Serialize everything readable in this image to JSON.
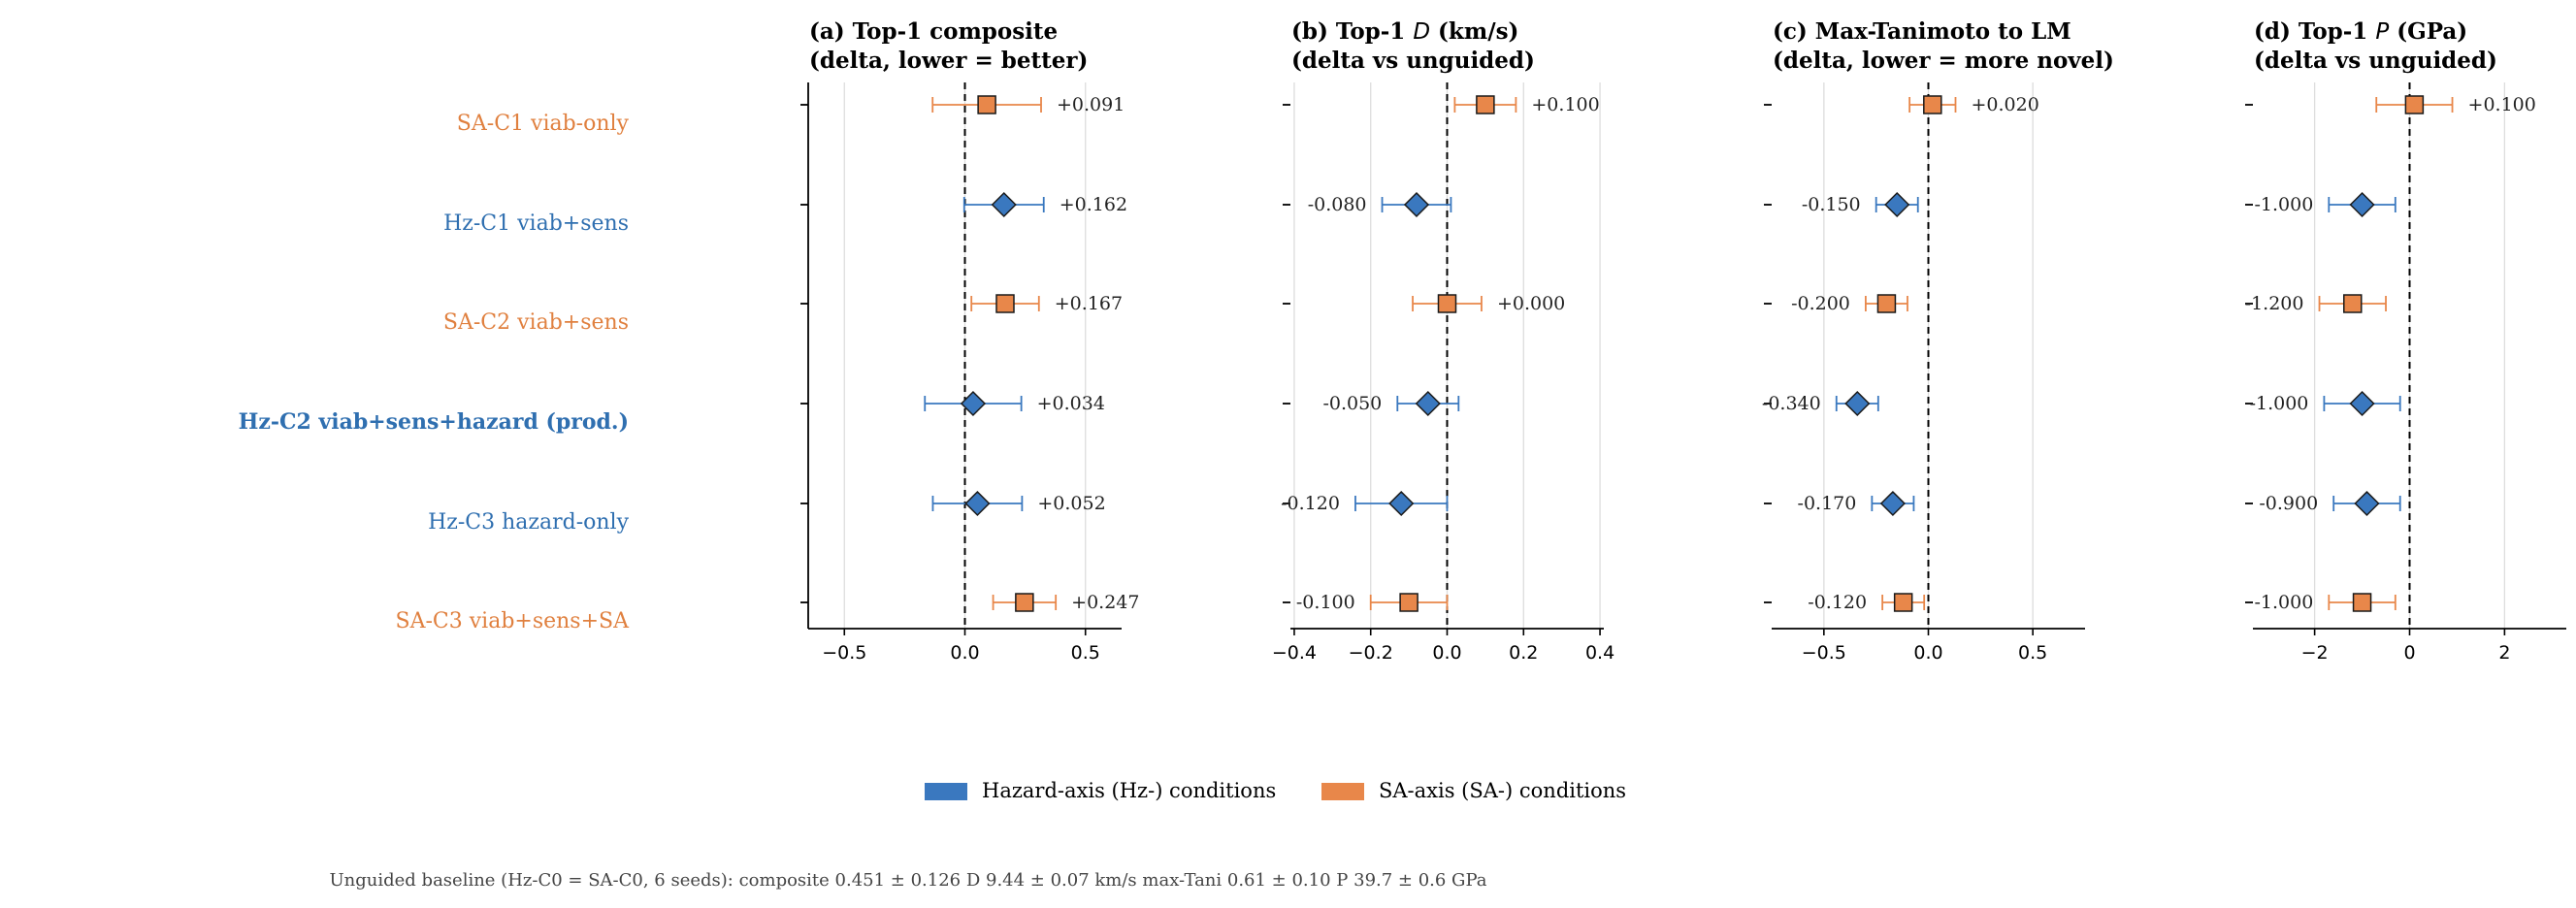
{
  "conditions": [
    {
      "label": "SA-C1  viab-only",
      "axis": "SA",
      "bold": false
    },
    {
      "label": "Hz-C1  viab+sens",
      "axis": "Hz",
      "bold": false
    },
    {
      "label": "SA-C2  viab+sens",
      "axis": "SA",
      "bold": false
    },
    {
      "label": "Hz-C2  viab+sens+hazard  (prod.)",
      "axis": "Hz",
      "bold": true
    },
    {
      "label": "Hz-C3  hazard-only",
      "axis": "Hz",
      "bold": false
    },
    {
      "label": "SA-C3  viab+sens+SA",
      "axis": "SA",
      "bold": false
    }
  ],
  "colors": {
    "Hz": "#3a78bf",
    "SA": "#e8874a",
    "Hz_text": "#2f6fb0",
    "SA_text": "#e0803f",
    "grid": "#dddddd",
    "axis": "#000000",
    "footer": "#444444"
  },
  "markers": {
    "Hz": "diamond",
    "SA": "square"
  },
  "legend": {
    "items": [
      {
        "label": "Hazard-axis (Hz-) conditions",
        "axis": "Hz"
      },
      {
        "label": "SA-axis (SA-) conditions",
        "axis": "SA"
      }
    ],
    "placement": "bottom-center"
  },
  "footer": {
    "text": "Unguided baseline (Hz-C0 = SA-C0, 6 seeds): composite 0.451 ± 0.126   D 9.44 ± 0.07 km/s   max-Tani 0.61 ± 0.10   P 39.7 ± 0.6 GPa"
  },
  "chart_data": [
    {
      "type": "scatter",
      "title": [
        "(a) Top-1 composite",
        "(delta, lower = better)"
      ],
      "xlim": [
        -0.65,
        0.65
      ],
      "xticks": [
        -0.5,
        0.0,
        0.5
      ],
      "xtick_labels": [
        "−0.5",
        "0.0",
        "0.5"
      ],
      "values": [
        0.091,
        0.162,
        0.167,
        0.034,
        0.052,
        0.247
      ],
      "errors": [
        0.225,
        0.165,
        0.14,
        0.2,
        0.185,
        0.13
      ],
      "labels": [
        "+0.091",
        "+0.162",
        "+0.167",
        "+0.034",
        "+0.052",
        "+0.247"
      ],
      "grid": true,
      "zero_line": true
    },
    {
      "type": "scatter",
      "title": [
        "(b) Top-1 D (km/s)",
        "(delta vs unguided)"
      ],
      "xlim": [
        -0.41,
        0.41
      ],
      "xticks": [
        -0.4,
        -0.2,
        0.0,
        0.2,
        0.4
      ],
      "xtick_labels": [
        "−0.4",
        "−0.2",
        "0.0",
        "0.2",
        "0.4"
      ],
      "values": [
        0.1,
        -0.08,
        0.0,
        -0.05,
        -0.12,
        -0.1
      ],
      "errors": [
        0.08,
        0.09,
        0.09,
        0.08,
        0.12,
        0.1
      ],
      "labels": [
        "+0.100",
        "-0.080",
        "+0.000",
        "-0.050",
        "-0.120",
        "-0.100"
      ],
      "grid": true,
      "zero_line": true
    },
    {
      "type": "scatter",
      "title": [
        "(c) Max-Tanimoto to LM",
        "(delta, lower = more novel)"
      ],
      "xlim": [
        -0.75,
        0.75
      ],
      "xticks": [
        -0.5,
        0.0,
        0.5
      ],
      "xtick_labels": [
        "−0.5",
        "0.0",
        "0.5"
      ],
      "values": [
        0.02,
        -0.15,
        -0.2,
        -0.34,
        -0.17,
        -0.12
      ],
      "errors": [
        0.11,
        0.1,
        0.1,
        0.1,
        0.1,
        0.1
      ],
      "labels": [
        "+0.020",
        "-0.150",
        "-0.200",
        "-0.340",
        "-0.170",
        "-0.120"
      ],
      "grid": true,
      "zero_line": true
    },
    {
      "type": "scatter",
      "title": [
        "(d) Top-1 P (GPa)",
        "(delta vs unguided)"
      ],
      "xlim": [
        -3.3,
        3.3
      ],
      "xticks": [
        -2,
        0,
        2
      ],
      "xtick_labels": [
        "−2",
        "0",
        "2"
      ],
      "values": [
        0.1,
        -1.0,
        -1.2,
        -1.0,
        -0.9,
        -1.0
      ],
      "errors": [
        0.8,
        0.7,
        0.7,
        0.8,
        0.7,
        0.7
      ],
      "labels": [
        "+0.100",
        "-1.000",
        "-1.200",
        "-1.000",
        "-0.900",
        "-1.000"
      ],
      "grid": true,
      "zero_line": true
    }
  ]
}
